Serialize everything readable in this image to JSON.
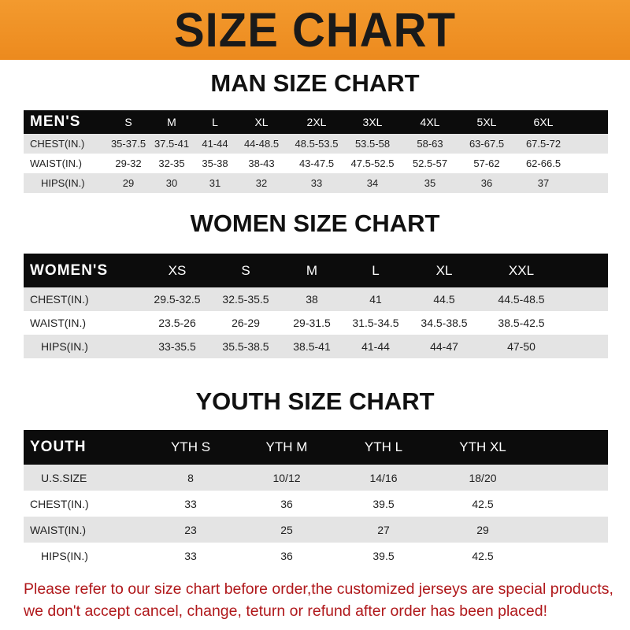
{
  "banner_title": "SIZE CHART",
  "men": {
    "title": "MAN SIZE CHART",
    "header": "MEN'S",
    "sizes": [
      "S",
      "M",
      "L",
      "XL",
      "2XL",
      "3XL",
      "4XL",
      "5XL",
      "6XL"
    ],
    "rows": [
      {
        "label": "CHEST(IN.)",
        "values": [
          "35-37.5",
          "37.5-41",
          "41-44",
          "44-48.5",
          "48.5-53.5",
          "53.5-58",
          "58-63",
          "63-67.5",
          "67.5-72"
        ]
      },
      {
        "label": "WAIST(IN.)",
        "values": [
          "29-32",
          "32-35",
          "35-38",
          "38-43",
          "43-47.5",
          "47.5-52.5",
          "52.5-57",
          "57-62",
          "62-66.5"
        ]
      },
      {
        "label": "HIPS(IN.)",
        "values": [
          "29",
          "30",
          "31",
          "32",
          "33",
          "34",
          "35",
          "36",
          "37"
        ]
      }
    ]
  },
  "women": {
    "title": "WOMEN SIZE CHART",
    "header": "WOMEN'S",
    "sizes": [
      "XS",
      "S",
      "M",
      "L",
      "XL",
      "XXL"
    ],
    "rows": [
      {
        "label": "CHEST(IN.)",
        "values": [
          "29.5-32.5",
          "32.5-35.5",
          "38",
          "41",
          "44.5",
          "44.5-48.5"
        ]
      },
      {
        "label": "WAIST(IN.)",
        "values": [
          "23.5-26",
          "26-29",
          "29-31.5",
          "31.5-34.5",
          "34.5-38.5",
          "38.5-42.5"
        ]
      },
      {
        "label": "HIPS(IN.)",
        "values": [
          "33-35.5",
          "35.5-38.5",
          "38.5-41",
          "41-44",
          "44-47",
          "47-50"
        ]
      }
    ]
  },
  "youth": {
    "title": "YOUTH SIZE CHART",
    "header": "YOUTH",
    "sizes": [
      "YTH S",
      "YTH M",
      "YTH L",
      "YTH XL"
    ],
    "rows": [
      {
        "label": "U.S.SIZE",
        "values": [
          "8",
          "10/12",
          "14/16",
          "18/20"
        ]
      },
      {
        "label": "CHEST(IN.)",
        "values": [
          "33",
          "36",
          "39.5",
          "42.5"
        ]
      },
      {
        "label": "WAIST(IN.)",
        "values": [
          "23",
          "25",
          "27",
          "29"
        ]
      },
      {
        "label": "HIPS(IN.)",
        "values": [
          "33",
          "36",
          "39.5",
          "42.5"
        ]
      }
    ]
  },
  "notice": {
    "line1": "Please refer to our size chart before order,the customized jerseys are special products,",
    "line2": "we don't accept cancel, change, teturn or refund after order has been placed!"
  },
  "colors": {
    "banner": "#f0901f",
    "header_row": "#0c0c0c",
    "alt_row": "#e4e4e4",
    "notice_text": "#b0181b"
  }
}
